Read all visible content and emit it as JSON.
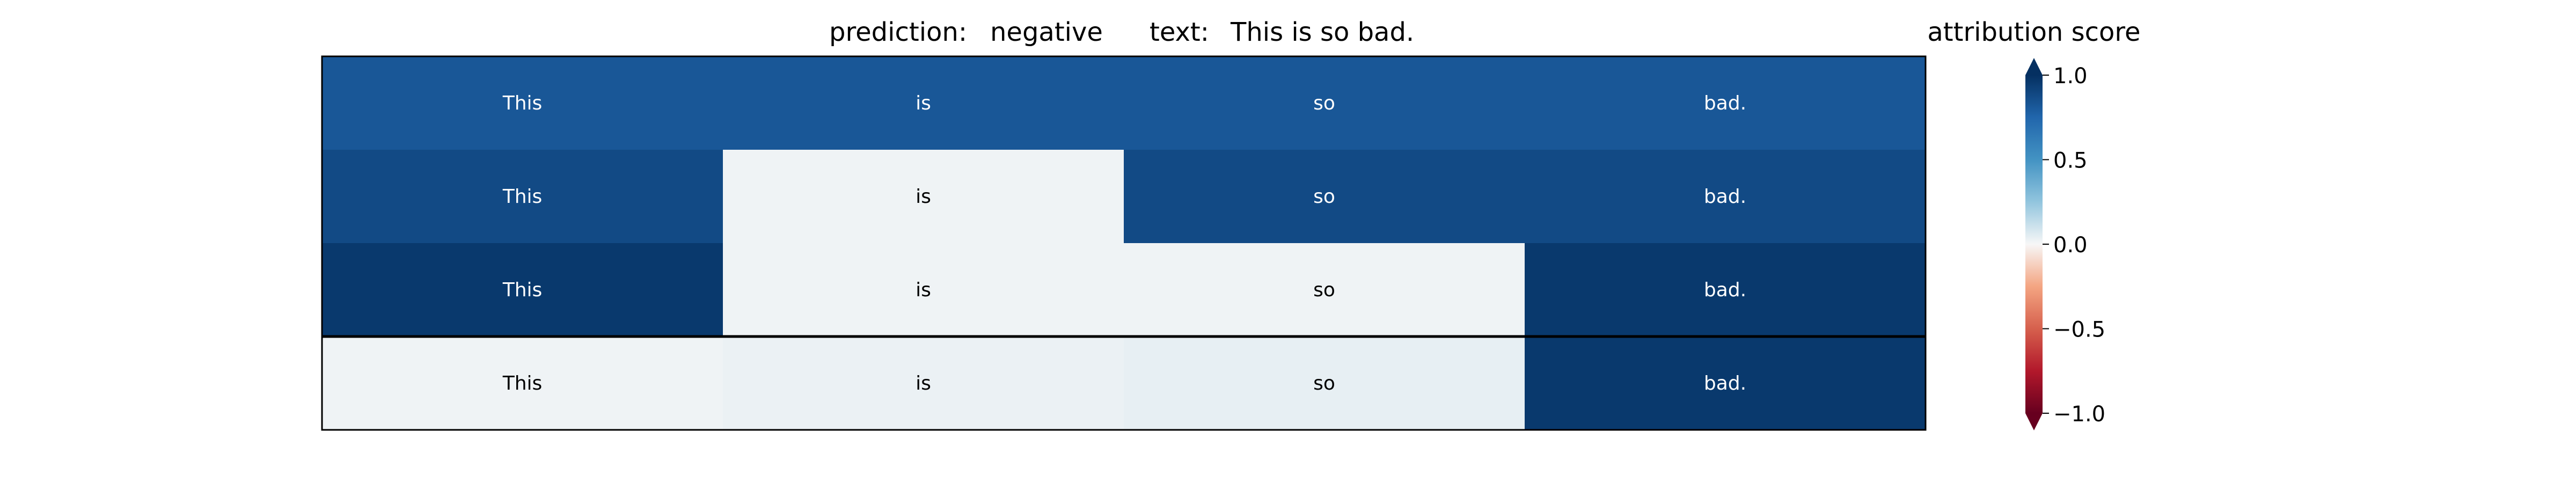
{
  "chart_data": {
    "type": "heatmap",
    "title_prediction_label": "prediction:",
    "title_prediction_value": "negative",
    "title_text_label": "text:",
    "title_text_value": "This is so bad.",
    "colorbar_title": "attribution score",
    "colorbar_ticks": [
      "1.0",
      "0.5",
      "0.0",
      "−0.5",
      "−1.0"
    ],
    "colorbar_tick_values": [
      1.0,
      0.5,
      0.0,
      -0.5,
      -1.0
    ],
    "vmin": -1.0,
    "vmax": 1.0,
    "colormap": "RdBu",
    "colorbar_extend": "both",
    "rows": [
      {
        "cells": [
          {
            "token": "This",
            "value": 0.82
          },
          {
            "token": "is",
            "value": 0.82
          },
          {
            "token": "so",
            "value": 0.82
          },
          {
            "token": "bad.",
            "value": 0.82
          }
        ]
      },
      {
        "cells": [
          {
            "token": "This",
            "value": 0.88
          },
          {
            "token": "is",
            "value": 0.02
          },
          {
            "token": "so",
            "value": 0.88
          },
          {
            "token": "bad.",
            "value": 0.88
          }
        ]
      },
      {
        "cells": [
          {
            "token": "This",
            "value": 0.96
          },
          {
            "token": "is",
            "value": 0.02
          },
          {
            "token": "so",
            "value": 0.02
          },
          {
            "token": "bad.",
            "value": 0.96
          }
        ]
      },
      {
        "cells": [
          {
            "token": "This",
            "value": 0.02
          },
          {
            "token": "is",
            "value": 0.03
          },
          {
            "token": "so",
            "value": 0.04
          },
          {
            "token": "bad.",
            "value": 0.96
          }
        ]
      }
    ],
    "separator_after_row": 2
  }
}
